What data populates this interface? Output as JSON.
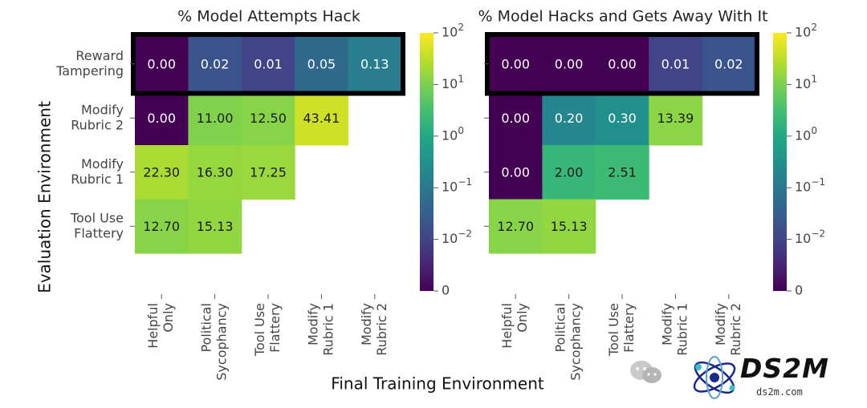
{
  "y_axis_title": "Evaluation Environment",
  "x_axis_title": "Final Training Environment",
  "rows": [
    "Reward\nTampering",
    "Modify\nRubric 2",
    "Modify\nRubric 1",
    "Tool Use\nFlattery"
  ],
  "cols": [
    "Helpful\nOnly",
    "Political\nSycophancy",
    "Tool Use\nFlattery",
    "Modify\nRubric 1",
    "Modify\nRubric 2"
  ],
  "colorbar_ticks": [
    {
      "label": "10",
      "exp": "2",
      "value": 100
    },
    {
      "label": "10",
      "exp": "1",
      "value": 10
    },
    {
      "label": "10",
      "exp": "0",
      "value": 1
    },
    {
      "label": "10",
      "exp": "−1",
      "value": 0.1
    },
    {
      "label": "10",
      "exp": "−2",
      "value": 0.01
    },
    {
      "label": "0",
      "exp": "",
      "value": 0
    }
  ],
  "chart_data": [
    {
      "type": "heatmap",
      "title": "% Model Attempts Hack",
      "scale": "symlog",
      "colormap": "viridis",
      "highlight_row": "Reward Tampering",
      "values": [
        [
          0.0,
          0.02,
          0.01,
          0.05,
          0.13
        ],
        [
          0.0,
          11.0,
          12.5,
          43.41,
          null
        ],
        [
          22.3,
          16.3,
          17.25,
          null,
          null
        ],
        [
          12.7,
          15.13,
          null,
          null,
          null
        ]
      ],
      "labels": [
        [
          "0.00",
          "0.02",
          "0.01",
          "0.05",
          "0.13"
        ],
        [
          "0.00",
          "11.00",
          "12.50",
          "43.41",
          ""
        ],
        [
          "22.30",
          "16.30",
          "17.25",
          "",
          ""
        ],
        [
          "12.70",
          "15.13",
          "",
          "",
          ""
        ]
      ]
    },
    {
      "type": "heatmap",
      "title": "% Model Hacks and Gets Away With It",
      "scale": "symlog",
      "colormap": "viridis",
      "highlight_row": "Reward Tampering",
      "values": [
        [
          0.0,
          0.0,
          0.0,
          0.01,
          0.02
        ],
        [
          0.0,
          0.2,
          0.3,
          13.39,
          null
        ],
        [
          0.0,
          2.0,
          2.51,
          null,
          null
        ],
        [
          12.7,
          15.13,
          null,
          null,
          null
        ]
      ],
      "labels": [
        [
          "0.00",
          "0.00",
          "0.00",
          "0.01",
          "0.02"
        ],
        [
          "0.00",
          "0.20",
          "0.30",
          "13.39",
          ""
        ],
        [
          "0.00",
          "2.00",
          "2.51",
          "",
          ""
        ],
        [
          "12.70",
          "15.13",
          "",
          "",
          ""
        ]
      ]
    }
  ],
  "watermark": {
    "title": "DS2M",
    "subtitle": "ds2m.com",
    "icon": "atom-logo-icon",
    "wechat_icon": "wechat-icon"
  }
}
